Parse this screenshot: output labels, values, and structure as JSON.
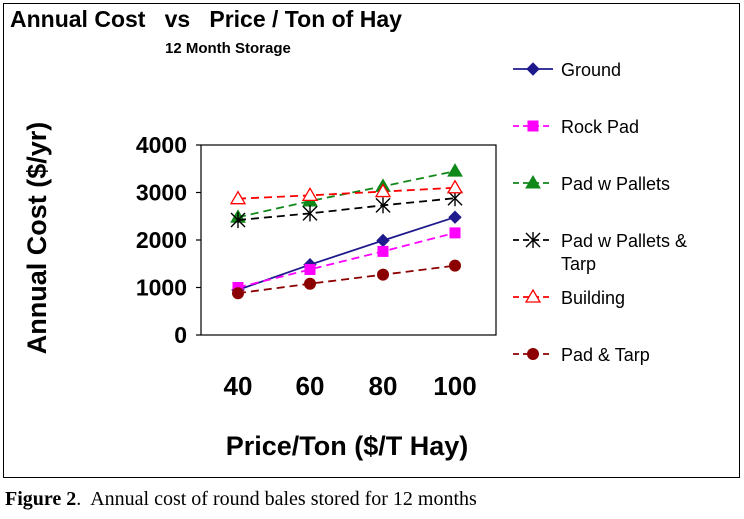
{
  "chart_data": {
    "type": "line",
    "title": "Annual Cost   vs   Price / Ton of Hay",
    "subtitle": "12 Month Storage",
    "xlabel": "Price/Ton ($/T Hay)",
    "ylabel": "Annual Cost ($/yr)",
    "x": [
      40,
      60,
      80,
      100
    ],
    "ylim": [
      0,
      4000
    ],
    "yticks": [
      0,
      1000,
      2000,
      3000,
      4000
    ],
    "legend_position": "right",
    "grid": false,
    "series": [
      {
        "name": "Ground",
        "values": [
          950,
          1480,
          1990,
          2480
        ],
        "color": "#1f1a8c",
        "marker": "diamond",
        "dash": "solid"
      },
      {
        "name": "Rock Pad",
        "values": [
          1000,
          1380,
          1760,
          2150
        ],
        "color": "#ff00ff",
        "marker": "square",
        "dash": "dashed"
      },
      {
        "name": "Pad w Pallets",
        "values": [
          2480,
          2820,
          3130,
          3450
        ],
        "color": "#11881a",
        "marker": "triangle-filled",
        "dash": "dashed"
      },
      {
        "name": "Pad w Pallets & Tarp",
        "values": [
          2420,
          2560,
          2730,
          2880
        ],
        "color": "#000000",
        "marker": "asterisk",
        "dash": "dashed"
      },
      {
        "name": "Building",
        "values": [
          2870,
          2940,
          3020,
          3100
        ],
        "color": "#ff0000",
        "marker": "triangle-open",
        "dash": "dashed"
      },
      {
        "name": "Pad & Tarp",
        "values": [
          880,
          1080,
          1270,
          1460
        ],
        "color": "#8b0000",
        "marker": "circle",
        "dash": "dashed"
      }
    ]
  },
  "caption": {
    "label": "Figure 2",
    "text": ".  Annual cost of round bales stored for 12 months"
  }
}
